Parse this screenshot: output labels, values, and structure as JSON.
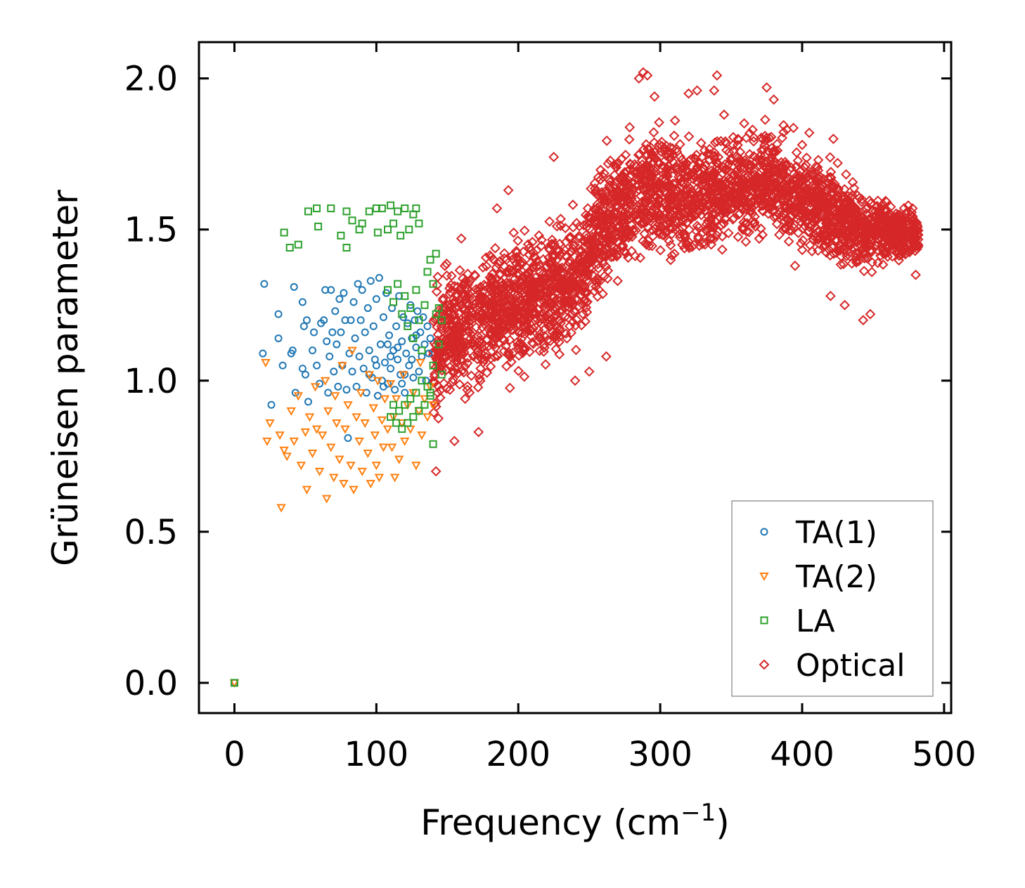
{
  "chart_data": {
    "type": "scatter",
    "title": "",
    "xlabel": "Frequency (cm",
    "xlabel_sup": "−1",
    "xlabel_close": ")",
    "ylabel": "Grüneisen parameter",
    "xlim": [
      -25,
      505
    ],
    "ylim": [
      -0.1,
      2.12
    ],
    "x_ticks": [
      0,
      100,
      200,
      300,
      400,
      500
    ],
    "x_tick_labels": [
      "0",
      "100",
      "200",
      "300",
      "400",
      "500"
    ],
    "y_ticks": [
      0.0,
      0.5,
      1.0,
      1.5,
      2.0
    ],
    "y_tick_labels": [
      "0.0",
      "0.5",
      "1.0",
      "1.5",
      "2.0"
    ],
    "legend_position": "bottom-right",
    "series": [
      {
        "name": "TA(1)",
        "color": "#1f77b4",
        "marker": "circle",
        "points": [
          [
            0,
            0
          ],
          [
            20,
            1.09
          ],
          [
            21,
            1.32
          ],
          [
            26,
            0.92
          ],
          [
            31,
            1.14
          ],
          [
            31,
            1.22
          ],
          [
            34,
            1.05
          ],
          [
            40,
            1.09
          ],
          [
            41,
            1.1
          ],
          [
            42,
            1.31
          ],
          [
            43,
            0.96
          ],
          [
            48,
            1.04
          ],
          [
            48,
            1.26
          ],
          [
            49,
            1.18
          ],
          [
            50,
            1.02
          ],
          [
            51,
            1.2
          ],
          [
            52,
            0.93
          ],
          [
            55,
            1.1
          ],
          [
            56,
            1.16
          ],
          [
            58,
            1.05
          ],
          [
            60,
            0.99
          ],
          [
            61,
            1.19
          ],
          [
            63,
            1.2
          ],
          [
            64,
            1.3
          ],
          [
            65,
            1.13
          ],
          [
            66,
            0.96
          ],
          [
            67,
            1.08
          ],
          [
            68,
            1.3
          ],
          [
            69,
            1.16
          ],
          [
            70,
            1.03
          ],
          [
            71,
            1.23
          ],
          [
            72,
            1.12
          ],
          [
            73,
            0.98
          ],
          [
            74,
            1.27
          ],
          [
            75,
            1.16
          ],
          [
            76,
            1.05
          ],
          [
            77,
            1.29
          ],
          [
            78,
            1.2
          ],
          [
            79,
            0.97
          ],
          [
            80,
            0.81
          ],
          [
            81,
            1.09
          ],
          [
            82,
            1.2
          ],
          [
            83,
            1.03
          ],
          [
            84,
            1.26
          ],
          [
            85,
            1.14
          ],
          [
            86,
            0.98
          ],
          [
            87,
            1.32
          ],
          [
            88,
            1.08
          ],
          [
            89,
            1.2
          ],
          [
            90,
            1.3
          ],
          [
            91,
            1.04
          ],
          [
            92,
            1.16
          ],
          [
            93,
            0.96
          ],
          [
            94,
            1.24
          ],
          [
            95,
            1.1
          ],
          [
            96,
            1.33
          ],
          [
            97,
            1.01
          ],
          [
            98,
            1.18
          ],
          [
            99,
            1.07
          ],
          [
            100,
            1.27
          ],
          [
            101,
            0.95
          ],
          [
            102,
            1.34
          ],
          [
            103,
            1.12
          ],
          [
            104,
            1.0
          ],
          [
            105,
            1.21
          ],
          [
            106,
            1.06
          ],
          [
            107,
            1.29
          ],
          [
            108,
            0.99
          ],
          [
            109,
            1.15
          ],
          [
            110,
            1.04
          ],
          [
            111,
            1.24
          ],
          [
            112,
            1.1
          ],
          [
            113,
            0.97
          ],
          [
            114,
            1.18
          ],
          [
            115,
            1.07
          ],
          [
            116,
            1.28
          ],
          [
            117,
            1.02
          ],
          [
            118,
            1.13
          ],
          [
            119,
            1.21
          ],
          [
            120,
            0.96
          ],
          [
            121,
            1.09
          ],
          [
            122,
            1.19
          ],
          [
            123,
            1.05
          ],
          [
            124,
            1.25
          ],
          [
            125,
            1.14
          ],
          [
            126,
            1.01
          ],
          [
            127,
            1.2
          ],
          [
            128,
            1.11
          ],
          [
            129,
            1.23
          ],
          [
            130,
            1.03
          ],
          [
            131,
            1.16
          ],
          [
            132,
            1.08
          ],
          [
            133,
            1.21
          ],
          [
            134,
            1.12
          ],
          [
            135,
            1.0
          ],
          [
            136,
            1.18
          ],
          [
            137,
            1.09
          ],
          [
            138,
            1.14
          ],
          [
            95,
            1.02
          ],
          [
            105,
            0.98
          ],
          [
            115,
            1.11
          ],
          [
            110,
            1.08
          ],
          [
            120,
            1.02
          ],
          [
            125,
            1.07
          ],
          [
            100,
            1.05
          ],
          [
            108,
            1.12
          ],
          [
            118,
            0.99
          ],
          [
            128,
            1.15
          ]
        ]
      },
      {
        "name": "TA(2)",
        "color": "#ff7f0e",
        "marker": "triangle-down",
        "points": [
          [
            0,
            0
          ],
          [
            22,
            1.06
          ],
          [
            23,
            0.8
          ],
          [
            25,
            0.86
          ],
          [
            32,
            0.82
          ],
          [
            33,
            0.58
          ],
          [
            35,
            0.77
          ],
          [
            37,
            0.75
          ],
          [
            40,
            0.9
          ],
          [
            42,
            0.8
          ],
          [
            45,
            0.95
          ],
          [
            47,
            0.72
          ],
          [
            50,
            0.83
          ],
          [
            51,
            0.64
          ],
          [
            53,
            0.88
          ],
          [
            55,
            0.76
          ],
          [
            57,
            0.98
          ],
          [
            58,
            0.84
          ],
          [
            60,
            0.7
          ],
          [
            62,
            0.82
          ],
          [
            64,
            1.0
          ],
          [
            65,
            0.61
          ],
          [
            66,
            0.9
          ],
          [
            68,
            0.78
          ],
          [
            70,
            0.68
          ],
          [
            71,
            0.95
          ],
          [
            72,
            0.86
          ],
          [
            74,
            0.74
          ],
          [
            76,
            1.05
          ],
          [
            77,
            0.66
          ],
          [
            78,
            0.84
          ],
          [
            80,
            0.92
          ],
          [
            82,
            0.72
          ],
          [
            83,
            1.1
          ],
          [
            84,
            0.64
          ],
          [
            86,
            0.88
          ],
          [
            88,
            0.8
          ],
          [
            89,
            0.96
          ],
          [
            90,
            0.7
          ],
          [
            92,
            0.86
          ],
          [
            94,
            0.76
          ],
          [
            95,
            1.02
          ],
          [
            96,
            0.66
          ],
          [
            98,
            0.91
          ],
          [
            99,
            0.82
          ],
          [
            100,
            0.72
          ],
          [
            101,
            1.0
          ],
          [
            102,
            0.68
          ],
          [
            104,
            0.87
          ],
          [
            105,
            0.78
          ],
          [
            106,
            0.94
          ],
          [
            108,
            0.84
          ],
          [
            110,
            0.99
          ],
          [
            111,
            0.78
          ],
          [
            112,
            0.88
          ],
          [
            113,
            0.68
          ],
          [
            114,
            0.94
          ],
          [
            116,
            0.74
          ],
          [
            118,
            0.86
          ],
          [
            119,
            1.02
          ],
          [
            120,
            0.8
          ],
          [
            122,
            0.92
          ],
          [
            124,
            0.84
          ],
          [
            126,
            0.96
          ],
          [
            128,
            0.72
          ],
          [
            130,
            0.9
          ],
          [
            131,
            1.06
          ],
          [
            132,
            0.82
          ],
          [
            134,
            0.94
          ],
          [
            136,
            0.88
          ],
          [
            138,
            0.98
          ],
          [
            140,
            0.92
          ]
        ]
      },
      {
        "name": "LA",
        "color": "#2ca02c",
        "marker": "square",
        "points": [
          [
            0,
            0
          ],
          [
            35,
            1.49
          ],
          [
            39,
            1.44
          ],
          [
            45,
            1.45
          ],
          [
            52,
            1.56
          ],
          [
            58,
            1.57
          ],
          [
            59,
            1.51
          ],
          [
            68,
            1.57
          ],
          [
            75,
            1.48
          ],
          [
            79,
            1.44
          ],
          [
            79,
            1.56
          ],
          [
            83,
            1.53
          ],
          [
            88,
            1.5
          ],
          [
            90,
            1.52
          ],
          [
            95,
            1.56
          ],
          [
            100,
            1.57
          ],
          [
            101,
            1.49
          ],
          [
            104,
            1.57
          ],
          [
            108,
            1.5
          ],
          [
            110,
            1.58
          ],
          [
            112,
            1.52
          ],
          [
            115,
            1.56
          ],
          [
            117,
            1.48
          ],
          [
            120,
            1.57
          ],
          [
            123,
            1.5
          ],
          [
            126,
            1.55
          ],
          [
            128,
            1.57
          ],
          [
            130,
            1.52
          ],
          [
            108,
            1.3
          ],
          [
            112,
            1.26
          ],
          [
            115,
            1.32
          ],
          [
            118,
            1.22
          ],
          [
            120,
            1.28
          ],
          [
            122,
            1.18
          ],
          [
            124,
            1.24
          ],
          [
            126,
            1.14
          ],
          [
            128,
            1.3
          ],
          [
            130,
            1.2
          ],
          [
            132,
            1.1
          ],
          [
            134,
            1.25
          ],
          [
            136,
            1.36
          ],
          [
            138,
            1.4
          ],
          [
            140,
            1.32
          ],
          [
            142,
            1.22
          ],
          [
            144,
            1.12
          ],
          [
            146,
            1.02
          ],
          [
            140,
            1.05
          ],
          [
            138,
            0.95
          ],
          [
            136,
            0.98
          ],
          [
            134,
            0.92
          ],
          [
            132,
            1.0
          ],
          [
            130,
            0.9
          ],
          [
            128,
            0.96
          ],
          [
            126,
            0.88
          ],
          [
            124,
            0.94
          ],
          [
            122,
            0.86
          ],
          [
            120,
            0.92
          ],
          [
            118,
            0.84
          ],
          [
            116,
            0.9
          ],
          [
            114,
            0.86
          ],
          [
            112,
            0.92
          ],
          [
            110,
            0.88
          ],
          [
            144,
            1.24
          ],
          [
            146,
            1.2
          ],
          [
            142,
            1.42
          ],
          [
            140,
            0.79
          ],
          [
            138,
            0.96
          ]
        ]
      },
      {
        "name": "Optical",
        "color": "#d62728",
        "marker": "diamond",
        "generator": {
          "count": 3200,
          "x_range": [
            140,
            482
          ],
          "seed": 17
        },
        "envelope_center": [
          [
            140,
            1.1
          ],
          [
            160,
            1.18
          ],
          [
            180,
            1.22
          ],
          [
            200,
            1.25
          ],
          [
            220,
            1.3
          ],
          [
            240,
            1.32
          ],
          [
            260,
            1.52
          ],
          [
            280,
            1.62
          ],
          [
            300,
            1.62
          ],
          [
            320,
            1.6
          ],
          [
            340,
            1.63
          ],
          [
            360,
            1.65
          ],
          [
            380,
            1.66
          ],
          [
            400,
            1.6
          ],
          [
            420,
            1.55
          ],
          [
            440,
            1.5
          ],
          [
            460,
            1.5
          ],
          [
            482,
            1.48
          ]
        ],
        "envelope_halfwidth": [
          [
            140,
            0.35
          ],
          [
            200,
            0.33
          ],
          [
            260,
            0.3
          ],
          [
            290,
            0.34
          ],
          [
            340,
            0.26
          ],
          [
            380,
            0.25
          ],
          [
            420,
            0.24
          ],
          [
            460,
            0.18
          ],
          [
            482,
            0.12
          ]
        ],
        "points": [
          [
            142,
            0.7
          ],
          [
            155,
            0.8
          ],
          [
            172,
            0.83
          ],
          [
            185,
            1.57
          ],
          [
            193,
            1.63
          ],
          [
            225,
            1.74
          ],
          [
            240,
            1.0
          ],
          [
            250,
            1.03
          ],
          [
            255,
            1.55
          ],
          [
            262,
            1.08
          ],
          [
            270,
            1.33
          ],
          [
            285,
            2.0
          ],
          [
            288,
            2.02
          ],
          [
            291,
            2.01
          ],
          [
            296,
            1.94
          ],
          [
            320,
            1.95
          ],
          [
            326,
            1.96
          ],
          [
            338,
            1.96
          ],
          [
            340,
            2.01
          ],
          [
            345,
            1.88
          ],
          [
            375,
            1.97
          ],
          [
            380,
            1.93
          ],
          [
            400,
            1.78
          ],
          [
            405,
            1.82
          ],
          [
            422,
            1.8
          ],
          [
            425,
            1.72
          ],
          [
            443,
            1.2
          ],
          [
            448,
            1.22
          ],
          [
            420,
            1.28
          ],
          [
            430,
            1.25
          ],
          [
            310,
            1.42
          ],
          [
            320,
            1.46
          ],
          [
            330,
            1.49
          ],
          [
            335,
            1.47
          ],
          [
            360,
            1.52
          ],
          [
            395,
            1.38
          ],
          [
            462,
            1.55
          ],
          [
            478,
            1.47
          ],
          [
            480,
            1.35
          ],
          [
            475,
            1.52
          ]
        ]
      }
    ]
  }
}
